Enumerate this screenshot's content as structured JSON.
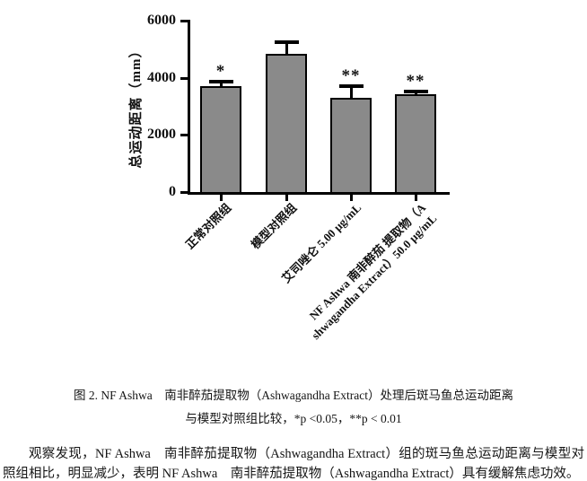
{
  "chart_data": {
    "type": "bar",
    "title": "",
    "ylabel": "总运动距离（mm）",
    "xlabel": "",
    "ylim": [
      0,
      6000
    ],
    "yticks": [
      "0",
      "2000",
      "4000",
      "6000"
    ],
    "ytick_values": [
      0,
      2000,
      4000,
      6000
    ],
    "grid": false,
    "legend": null,
    "bar_color": "#8a8a8a",
    "axis_color": "#000000",
    "categories": [
      [
        "正常对照组"
      ],
      [
        "模型对照组"
      ],
      [
        "艾司唑仑 5.00 µg/mL"
      ],
      [
        "NF Ashwa 南非醉茄 提取物（A",
        "shwagandha Extract）50.0 µg/mL"
      ]
    ],
    "values": [
      3700,
      4850,
      3300,
      3430
    ],
    "errors_plus": [
      150,
      400,
      400,
      90
    ],
    "significance": [
      "*",
      "",
      "**",
      "**"
    ]
  },
  "figure": {
    "caption_line1": "图 2. NF Ashwa　南非醉茄提取物（Ashwagandha Extract）处理后斑马鱼总运动距离",
    "caption_line2": "与模型对照组比较，*p <0.05，**p < 0.01",
    "body_paragraph": "观察发现，NF Ashwa　南非醉茄提取物（Ashwagandha Extract）组的斑马鱼总运动距离与模型对照组相比，明显减少，表明 NF Ashwa　南非醉茄提取物（Ashwagandha Extract）具有缓解焦虑功效。"
  }
}
